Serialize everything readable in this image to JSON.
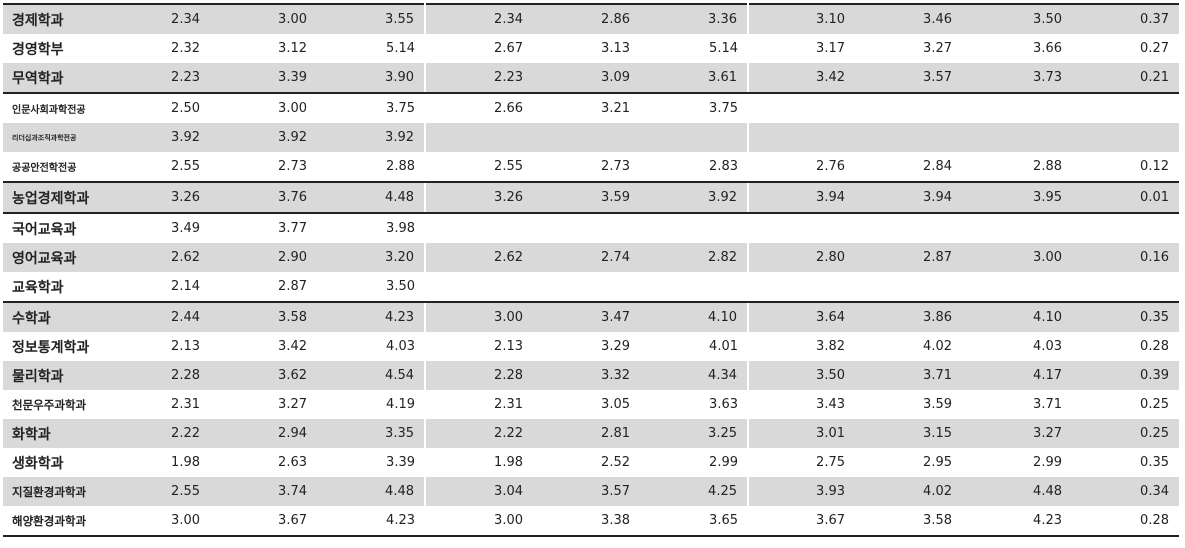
{
  "table": {
    "rows": [
      {
        "name": "경제학과",
        "values": [
          2.34,
          3.0,
          3.55,
          2.34,
          2.86,
          3.36,
          3.1,
          3.46,
          3.5,
          0.37
        ],
        "value_labels": [
          "2.34",
          "3.00",
          "3.55",
          "2.34",
          "2.86",
          "3.36",
          "3.10",
          "3.46",
          "3.50",
          "0.37"
        ]
      },
      {
        "name": "경영학부",
        "values": [
          2.32,
          3.12,
          5.14,
          2.67,
          3.13,
          5.14,
          3.17,
          3.27,
          3.66,
          0.27
        ],
        "value_labels": [
          "2.32",
          "3.12",
          "5.14",
          "2.67",
          "3.13",
          "5.14",
          "3.17",
          "3.27",
          "3.66",
          "0.27"
        ]
      },
      {
        "name": "무역학과",
        "values": [
          2.23,
          3.39,
          3.9,
          2.23,
          3.09,
          3.61,
          3.42,
          3.57,
          3.73,
          0.21
        ],
        "value_labels": [
          "2.23",
          "3.39",
          "3.90",
          "2.23",
          "3.09",
          "3.61",
          "3.42",
          "3.57",
          "3.73",
          "0.21"
        ]
      },
      {
        "name": "인문사회과학전공",
        "values": [
          2.5,
          3.0,
          3.75,
          2.66,
          3.21,
          3.75,
          null,
          null,
          null,
          null
        ],
        "value_labels": [
          "2.50",
          "3.00",
          "3.75",
          "2.66",
          "3.21",
          "3.75",
          null,
          null,
          null,
          null
        ]
      },
      {
        "name": "리더십과조직과학전공",
        "values": [
          3.92,
          3.92,
          3.92,
          null,
          null,
          null,
          null,
          null,
          null,
          null
        ],
        "value_labels": [
          "3.92",
          "3.92",
          "3.92",
          null,
          null,
          null,
          null,
          null,
          null,
          null
        ]
      },
      {
        "name": "공공안전학전공",
        "values": [
          2.55,
          2.73,
          2.88,
          2.55,
          2.73,
          2.83,
          2.76,
          2.84,
          2.88,
          0.12
        ],
        "value_labels": [
          "2.55",
          "2.73",
          "2.88",
          "2.55",
          "2.73",
          "2.83",
          "2.76",
          "2.84",
          "2.88",
          "0.12"
        ]
      },
      {
        "name": "농업경제학과",
        "values": [
          3.26,
          3.76,
          4.48,
          3.26,
          3.59,
          3.92,
          3.94,
          3.94,
          3.95,
          0.01
        ],
        "value_labels": [
          "3.26",
          "3.76",
          "4.48",
          "3.26",
          "3.59",
          "3.92",
          "3.94",
          "3.94",
          "3.95",
          "0.01"
        ]
      },
      {
        "name": "국어교육과",
        "values": [
          3.49,
          3.77,
          3.98,
          null,
          null,
          null,
          null,
          null,
          null,
          null
        ],
        "value_labels": [
          "3.49",
          "3.77",
          "3.98",
          null,
          null,
          null,
          null,
          null,
          null,
          null
        ]
      },
      {
        "name": "영어교육과",
        "values": [
          2.62,
          2.9,
          3.2,
          2.62,
          2.74,
          2.82,
          2.8,
          2.87,
          3.0,
          0.16
        ],
        "value_labels": [
          "2.62",
          "2.90",
          "3.20",
          "2.62",
          "2.74",
          "2.82",
          "2.80",
          "2.87",
          "3.00",
          "0.16"
        ]
      },
      {
        "name": "교육학과",
        "values": [
          2.14,
          2.87,
          3.5,
          null,
          null,
          null,
          null,
          null,
          null,
          null
        ],
        "value_labels": [
          "2.14",
          "2.87",
          "3.50",
          null,
          null,
          null,
          null,
          null,
          null,
          null
        ]
      },
      {
        "name": "수학과",
        "values": [
          2.44,
          3.58,
          4.23,
          3.0,
          3.47,
          4.1,
          3.64,
          3.86,
          4.1,
          0.35
        ],
        "value_labels": [
          "2.44",
          "3.58",
          "4.23",
          "3.00",
          "3.47",
          "4.10",
          "3.64",
          "3.86",
          "4.10",
          "0.35"
        ]
      },
      {
        "name": "정보통계학과",
        "values": [
          2.13,
          3.42,
          4.03,
          2.13,
          3.29,
          4.01,
          3.82,
          4.02,
          4.03,
          0.28
        ],
        "value_labels": [
          "2.13",
          "3.42",
          "4.03",
          "2.13",
          "3.29",
          "4.01",
          "3.82",
          "4.02",
          "4.03",
          "0.28"
        ]
      },
      {
        "name": "물리학과",
        "values": [
          2.28,
          3.62,
          4.54,
          2.28,
          3.32,
          4.34,
          3.5,
          3.71,
          4.17,
          0.39
        ],
        "value_labels": [
          "2.28",
          "3.62",
          "4.54",
          "2.28",
          "3.32",
          "4.34",
          "3.50",
          "3.71",
          "4.17",
          "0.39"
        ]
      },
      {
        "name": "천문우주과학과",
        "values": [
          2.31,
          3.27,
          4.19,
          2.31,
          3.05,
          3.63,
          3.43,
          3.59,
          3.71,
          0.25
        ],
        "value_labels": [
          "2.31",
          "3.27",
          "4.19",
          "2.31",
          "3.05",
          "3.63",
          "3.43",
          "3.59",
          "3.71",
          "0.25"
        ]
      },
      {
        "name": "화학과",
        "values": [
          2.22,
          2.94,
          3.35,
          2.22,
          2.81,
          3.25,
          3.01,
          3.15,
          3.27,
          0.25
        ],
        "value_labels": [
          "2.22",
          "2.94",
          "3.35",
          "2.22",
          "2.81",
          "3.25",
          "3.01",
          "3.15",
          "3.27",
          "0.25"
        ]
      },
      {
        "name": "생화학과",
        "values": [
          1.98,
          2.63,
          3.39,
          1.98,
          2.52,
          2.99,
          2.75,
          2.95,
          2.99,
          0.35
        ],
        "value_labels": [
          "1.98",
          "2.63",
          "3.39",
          "1.98",
          "2.52",
          "2.99",
          "2.75",
          "2.95",
          "2.99",
          "0.35"
        ]
      },
      {
        "name": "지질환경과학과",
        "values": [
          2.55,
          3.74,
          4.48,
          3.04,
          3.57,
          4.25,
          3.93,
          4.02,
          4.48,
          0.34
        ],
        "value_labels": [
          "2.55",
          "3.74",
          "4.48",
          "3.04",
          "3.57",
          "4.25",
          "3.93",
          "4.02",
          "4.48",
          "0.34"
        ]
      },
      {
        "name": "해양환경과학과",
        "values": [
          3.0,
          3.67,
          4.23,
          3.0,
          3.38,
          3.65,
          3.67,
          3.58,
          4.23,
          0.28
        ],
        "value_labels": [
          "3.00",
          "3.67",
          "4.23",
          "3.00",
          "3.38",
          "3.65",
          "3.67",
          "3.58",
          "4.23",
          "0.28"
        ]
      }
    ]
  }
}
